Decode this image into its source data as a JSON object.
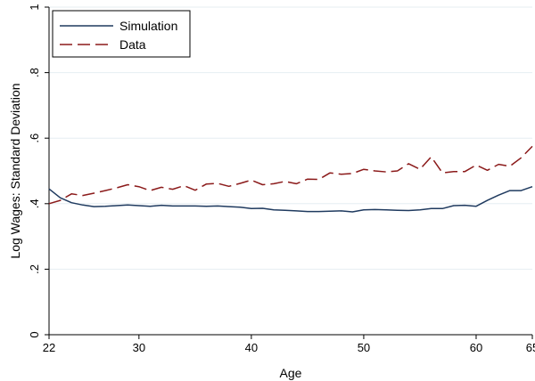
{
  "chart_data": {
    "type": "line",
    "xlabel": "Age",
    "ylabel": "Log Wages: Standard Deviation",
    "xlim": [
      22,
      65
    ],
    "ylim": [
      0,
      1
    ],
    "x_ticks": [
      22,
      30,
      40,
      50,
      60,
      65
    ],
    "x_tick_labels": [
      "22",
      "30",
      "40",
      "50",
      "60",
      "65"
    ],
    "y_ticks": [
      0,
      0.2,
      0.4,
      0.6,
      0.8,
      1
    ],
    "y_tick_labels": [
      "0",
      ".2",
      ".4",
      ".6",
      ".8",
      "1"
    ],
    "grid": true,
    "legend_position": "top-left",
    "series": [
      {
        "name": "Simulation",
        "color": "#1f3a5f",
        "dash": "solid",
        "x": [
          22,
          23,
          24,
          25,
          26,
          27,
          28,
          29,
          30,
          31,
          32,
          33,
          34,
          35,
          36,
          37,
          38,
          39,
          40,
          41,
          42,
          43,
          44,
          45,
          46,
          47,
          48,
          49,
          50,
          51,
          52,
          53,
          54,
          55,
          56,
          57,
          58,
          59,
          60,
          61,
          62,
          63,
          64,
          65
        ],
        "y": [
          0.445,
          0.418,
          0.403,
          0.396,
          0.391,
          0.392,
          0.394,
          0.396,
          0.394,
          0.392,
          0.395,
          0.393,
          0.393,
          0.393,
          0.392,
          0.393,
          0.391,
          0.389,
          0.385,
          0.386,
          0.381,
          0.38,
          0.378,
          0.376,
          0.376,
          0.377,
          0.378,
          0.375,
          0.381,
          0.382,
          0.381,
          0.38,
          0.379,
          0.381,
          0.385,
          0.385,
          0.394,
          0.395,
          0.392,
          0.41,
          0.426,
          0.44,
          0.44,
          0.452
        ]
      },
      {
        "name": "Data",
        "color": "#8b1a1a",
        "dash": "long-dash",
        "x": [
          22,
          23,
          24,
          25,
          26,
          27,
          28,
          29,
          30,
          31,
          32,
          33,
          34,
          35,
          36,
          37,
          38,
          39,
          40,
          41,
          42,
          43,
          44,
          45,
          46,
          47,
          48,
          49,
          50,
          51,
          52,
          53,
          54,
          55,
          56,
          57,
          58,
          59,
          60,
          61,
          62,
          63,
          64,
          65
        ],
        "y": [
          0.4,
          0.41,
          0.43,
          0.425,
          0.432,
          0.44,
          0.448,
          0.458,
          0.452,
          0.44,
          0.45,
          0.444,
          0.455,
          0.441,
          0.46,
          0.462,
          0.453,
          0.462,
          0.472,
          0.458,
          0.461,
          0.468,
          0.461,
          0.475,
          0.474,
          0.494,
          0.49,
          0.492,
          0.505,
          0.5,
          0.497,
          0.5,
          0.522,
          0.505,
          0.543,
          0.494,
          0.498,
          0.498,
          0.518,
          0.502,
          0.52,
          0.514,
          0.54,
          0.575
        ]
      }
    ]
  }
}
